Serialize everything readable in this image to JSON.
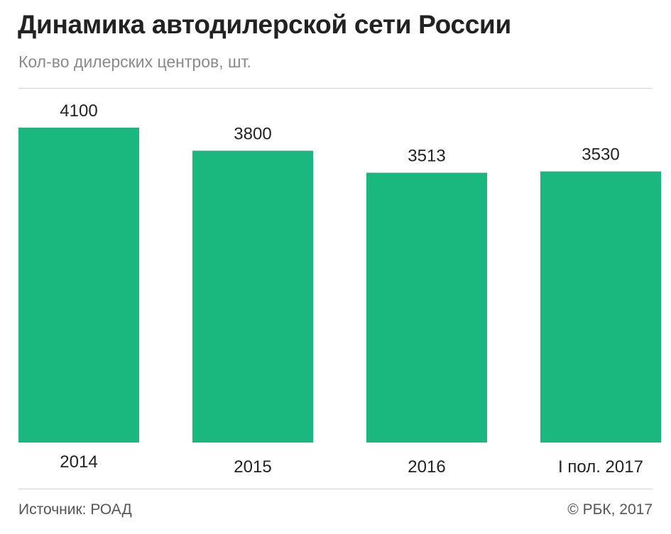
{
  "header": {
    "title": "Динамика автодилерской сети России",
    "subtitle": "Кол-во дилерских центров, шт."
  },
  "footer": {
    "source": "Источник: РОАД",
    "copyright": "© РБК, 2017"
  },
  "colors": {
    "bar": "#1ab87f",
    "text": "#222222",
    "muted": "#8a8a8a",
    "rule": "#d2d2d2"
  },
  "chart_data": {
    "type": "bar",
    "title": "Динамика автодилерской сети России",
    "subtitle": "Кол-во дилерских центров, шт.",
    "categories": [
      "2014",
      "2015",
      "2016",
      "I пол. 2017"
    ],
    "values": [
      4100,
      3800,
      3513,
      3530
    ],
    "data_labels": [
      "4100",
      "3800",
      "3513",
      "3530"
    ],
    "xlabel": "",
    "ylabel": "",
    "ylim": [
      0,
      4100
    ],
    "grid": false,
    "legend": "none"
  }
}
